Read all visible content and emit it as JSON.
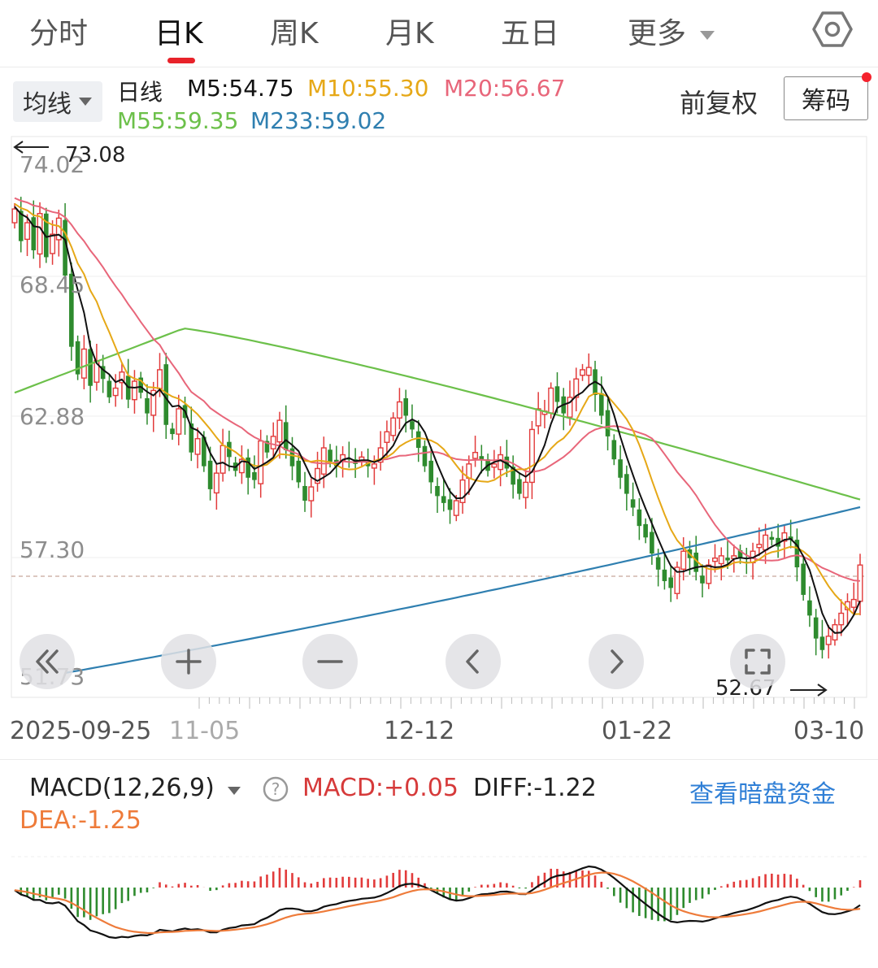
{
  "tabs": [
    "分时",
    "日K",
    "周K",
    "月K",
    "五日",
    "更多"
  ],
  "active_tab": "日K",
  "ma_selector": "均线",
  "legend": {
    "period": "日线",
    "m5": "M5:54.75",
    "m10": "M10:55.30",
    "m20": "M20:56.67",
    "m55": "M55:59.35",
    "m233": "M233:59.02"
  },
  "adjust_label": "前复权",
  "chips_button": "筹码",
  "price_axis": [
    "74.02",
    "68.45",
    "62.88",
    "57.30",
    "51.73"
  ],
  "high_marker": "73.08",
  "low_marker": "52.67",
  "dates": [
    "2025-09-25",
    "11-05",
    "12-12",
    "01-22",
    "03-10"
  ],
  "macd": {
    "selector": "MACD(12,26,9)",
    "macd_value": "MACD:+0.05",
    "diff": "DIFF:-1.22",
    "dea": "DEA:-1.25",
    "link": "查看暗盘资金"
  },
  "colors": {
    "up": "#e23b3b",
    "down": "#2e8b2e",
    "m5": "#111111",
    "m10": "#e6a817",
    "m20": "#e8667a",
    "m55": "#6cc04a",
    "m233": "#2f7fb0",
    "accent": "#e8222a",
    "link": "#2f7fd6"
  },
  "chart_data": {
    "type": "candlestick",
    "y_range": [
      51.73,
      74.02
    ],
    "closes": [
      72.0,
      70.6,
      71.4,
      70.2,
      71.8,
      69.9,
      70.9,
      71.6,
      69.1,
      66.0,
      64.8,
      65.9,
      64.3,
      65.4,
      64.6,
      63.8,
      64.2,
      64.9,
      63.7,
      64.5,
      64.0,
      63.1,
      64.1,
      65.0,
      62.6,
      62.2,
      63.3,
      62.9,
      61.4,
      62.0,
      60.8,
      59.8,
      60.5,
      61.7,
      61.2,
      60.6,
      61.1,
      60.3,
      60.2,
      61.9,
      61.4,
      62.1,
      62.8,
      61.5,
      60.8,
      60.1,
      59.3,
      59.9,
      60.7,
      61.6,
      61.0,
      60.8,
      61.3,
      61.1,
      60.9,
      61.2,
      60.8,
      60.9,
      61.6,
      62.3,
      62.9,
      63.6,
      63.0,
      62.4,
      61.6,
      60.8,
      60.1,
      59.5,
      59.2,
      58.9,
      59.3,
      60.2,
      60.9,
      61.4,
      61.1,
      60.6,
      60.9,
      61.3,
      60.7,
      60.0,
      59.6,
      60.1,
      62.4,
      63.3,
      63.2,
      64.2,
      63.6,
      63.1,
      63.8,
      64.6,
      65.0,
      65.1,
      63.9,
      63.0,
      62.1,
      61.1,
      60.3,
      59.6,
      59.0,
      58.2,
      57.7,
      57.0,
      56.3,
      55.8,
      55.5,
      56.4,
      57.1,
      56.8,
      56.2,
      55.7,
      56.5,
      56.8,
      56.9,
      56.7,
      56.9,
      56.8,
      56.6,
      57.1,
      57.4,
      57.8,
      57.6,
      57.3,
      57.9,
      57.6,
      56.4,
      55.2,
      54.3,
      53.3,
      52.8,
      53.4,
      53.9,
      54.4,
      54.9,
      55.0,
      56.5
    ]
  }
}
